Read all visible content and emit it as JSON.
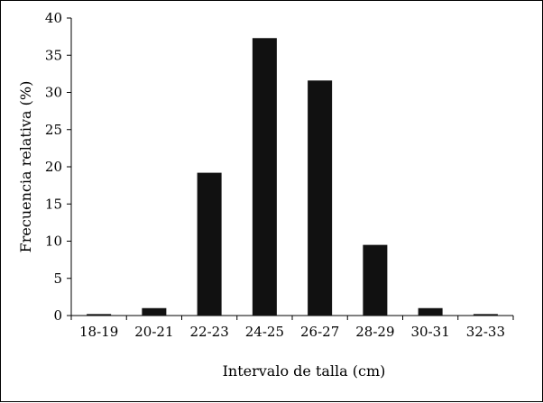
{
  "chart_data": {
    "type": "bar",
    "xlabel": "Intervalo de talla (cm)",
    "ylabel": "Frecuencia relativa (%)",
    "categories": [
      "18-19",
      "20-21",
      "22-23",
      "24-25",
      "26-27",
      "28-29",
      "30-31",
      "32-33"
    ],
    "values": [
      0.2,
      1.0,
      19.2,
      37.3,
      31.6,
      9.5,
      1.0,
      0.2
    ],
    "ylim": [
      0,
      40
    ],
    "yticks": [
      0,
      5,
      10,
      15,
      20,
      25,
      30,
      35,
      40
    ],
    "grid": false,
    "legend": "none",
    "bar_color": "#111111"
  }
}
